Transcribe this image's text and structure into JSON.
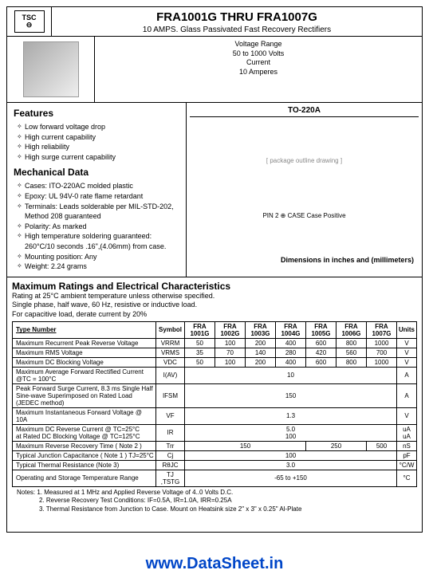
{
  "logo_text": "TSC",
  "title_left": "FRA1001G",
  "title_mid": " THRU ",
  "title_right": "FRA1007G",
  "subtitle": "10 AMPS. Glass Passivated Fast Recovery Rectifiers",
  "voltage_range_lbl": "Voltage Range",
  "voltage_range": "50 to 1000 Volts",
  "current_lbl": "Current",
  "current": "10 Amperes",
  "package": "TO-220A",
  "features_hdr": "Features",
  "features": [
    "Low forward voltage drop",
    "High current capability",
    "High reliability",
    "High surge current capability"
  ],
  "mech_hdr": "Mechanical Data",
  "mech": [
    "Cases: ITO-220AC molded plastic",
    "Epoxy: UL 94V-0 rate flame retardant",
    "Terminals: Leads solderable per MIL-STD-202, Method 208 guaranteed",
    "Polarity: As marked",
    "High temperature soldering guaranteed: 260°C/10 seconds .16\",(4.06mm) from case.",
    "Mounting position: Any",
    "Weight: 2.24 grams"
  ],
  "dim_note": "Dimensions in inches and (millimeters)",
  "drawing_placeholder": "[ package outline drawing ]",
  "pin_note": "PIN 2 ⊕ CASE   Case Positive",
  "ratings_hdr": "Maximum Ratings and Electrical Characteristics",
  "rating_note1": "Rating at 25°C ambient temperature unless otherwise specified.",
  "rating_note2": "Single phase, half wave, 60 Hz, resistive or inductive load.",
  "rating_note3": "For capacitive load, derate current by 20%",
  "type_number": "Type Number",
  "symbol": "Symbol",
  "units": "Units",
  "parts": [
    "FRA 1001G",
    "FRA 1002G",
    "FRA 1003G",
    "FRA 1004G",
    "FRA 1005G",
    "FRA 1006G",
    "FRA 1007G"
  ],
  "rows": [
    {
      "label": "Maximum Recurrent Peak Reverse Voltage",
      "sym": "VRRM",
      "vals": [
        "50",
        "100",
        "200",
        "400",
        "600",
        "800",
        "1000"
      ],
      "unit": "V"
    },
    {
      "label": "Maximum RMS Voltage",
      "sym": "VRMS",
      "vals": [
        "35",
        "70",
        "140",
        "280",
        "420",
        "560",
        "700"
      ],
      "unit": "V"
    },
    {
      "label": "Maximum DC Blocking Voltage",
      "sym": "VDC",
      "vals": [
        "50",
        "100",
        "200",
        "400",
        "600",
        "800",
        "1000"
      ],
      "unit": "V"
    },
    {
      "label": "Maximum Average Forward Rectified Current @TC = 100°C",
      "sym": "I(AV)",
      "span": "10",
      "unit": "A"
    },
    {
      "label": "Peak Forward Surge Current, 8.3 ms Single Half Sine-wave Superimposed on Rated Load (JEDEC method)",
      "sym": "IFSM",
      "span": "150",
      "unit": "A"
    },
    {
      "label": "Maximum Instantaneous Forward Voltage @ 10A",
      "sym": "VF",
      "span": "1.3",
      "unit": "V"
    },
    {
      "label": "Maximum DC Reverse Current @ TC=25°C\nat Rated DC Blocking Voltage @ TC=125°C",
      "sym": "IR",
      "span": "5.0\n100",
      "unit": "uA\nuA"
    },
    {
      "label": "Maximum Reverse Recovery Time ( Note 2 )",
      "sym": "Trr",
      "vals4": [
        "150",
        "250",
        "500"
      ],
      "unit": "nS"
    },
    {
      "label": "Typical Junction Capacitance ( Note 1 ) TJ=25°C",
      "sym": "Cj",
      "span": "100",
      "unit": "pF"
    },
    {
      "label": "Typical Thermal Resistance (Note 3)",
      "sym": "RθJC",
      "span": "3.0",
      "unit": "°C/W"
    },
    {
      "label": "Operating and Storage Temperature Range",
      "sym": "TJ ,TSTG",
      "span": "-65 to +150",
      "unit": "°C"
    }
  ],
  "footnotes": [
    "Notes: 1. Measured at 1 MHz and Applied Reverse Voltage of 4..0 Volts D.C.",
    "2. Reverse Recovery Test Conditions: IF=0.5A, IR=1.0A, IRR=0.25A",
    "3. Thermal Resistance from Junction to Case. Mount on Heatsink size 2\" x 3\" x 0.25\" Al-Plate"
  ],
  "footer": "www.DataSheet.in"
}
